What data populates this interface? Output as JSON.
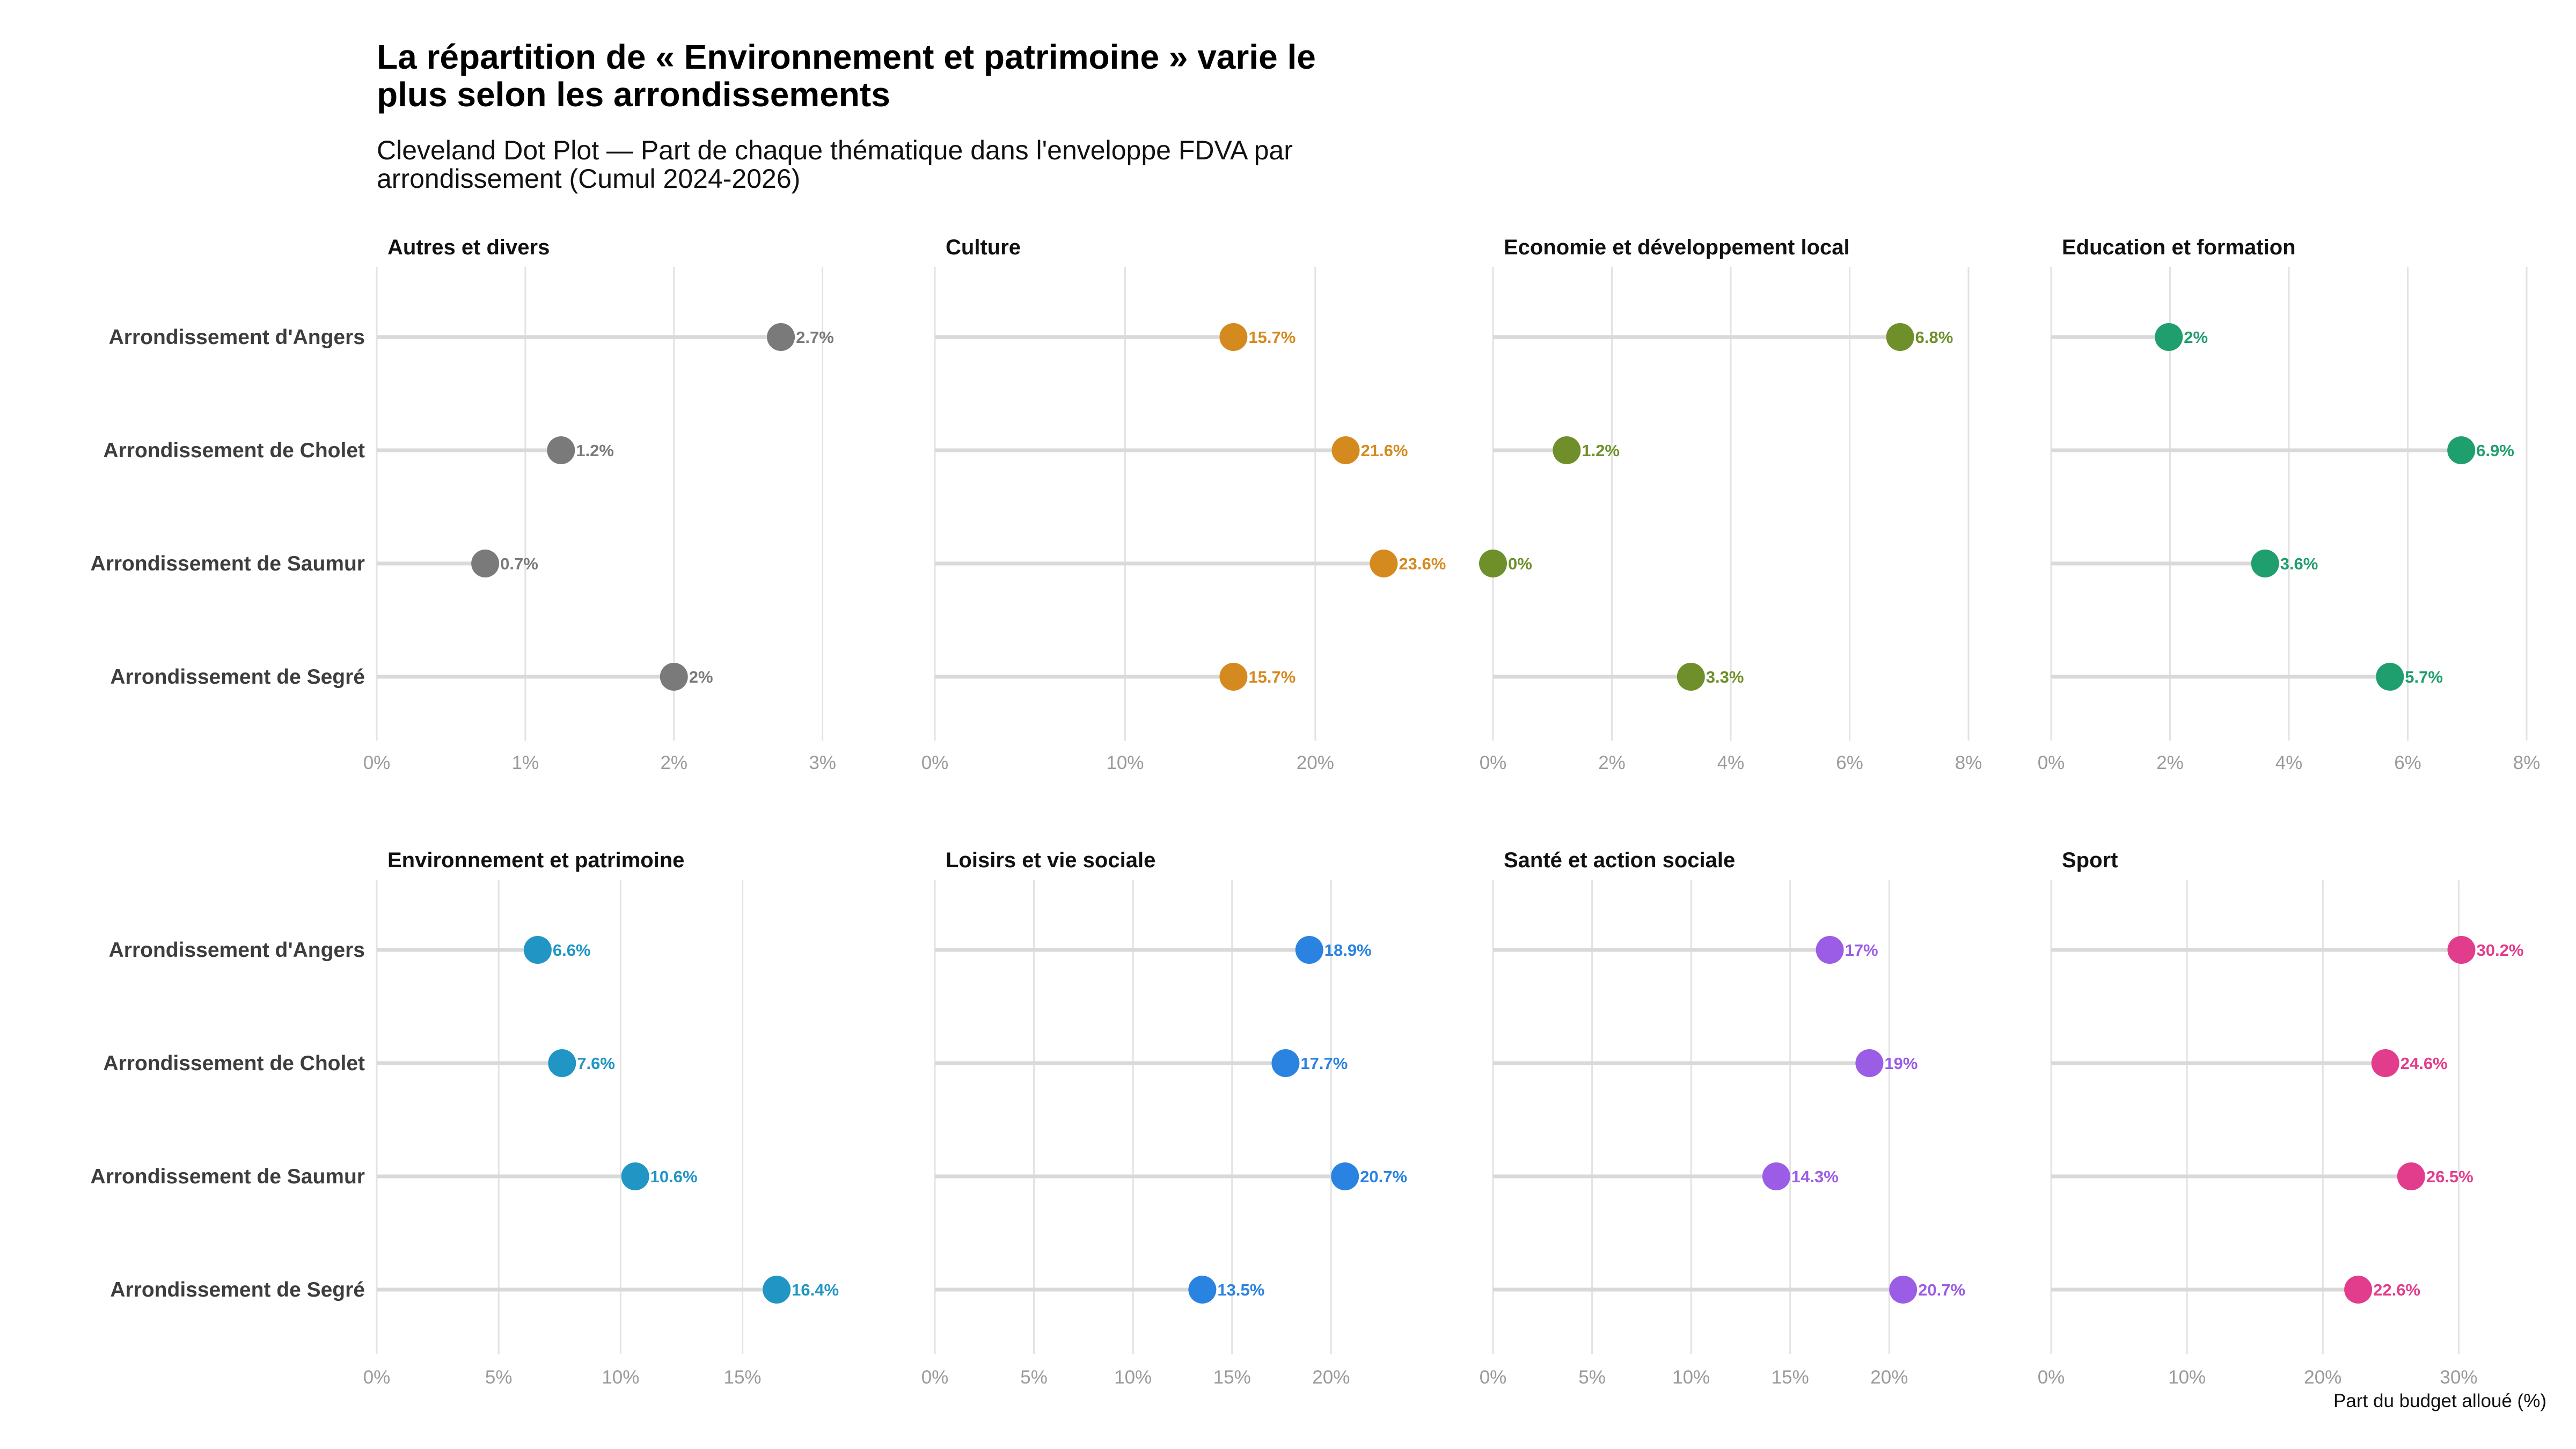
{
  "chart_data": {
    "type": "scatter",
    "subtype": "cleveland-dot-plot",
    "title": "La répartition de « Environnement et patrimoine » varie le plus selon les arrondissements",
    "title_lines": [
      "La répartition de « Environnement et patrimoine » varie le",
      "plus selon les arrondissements"
    ],
    "subtitle": "Cleveland Dot Plot — Part de chaque thématique dans l'enveloppe FDVA par arrondissement (Cumul 2024-2026)",
    "subtitle_lines": [
      "Cleveland Dot Plot — Part de chaque thématique dans l'enveloppe FDVA par",
      "arrondissement (Cumul 2024-2026)"
    ],
    "xlabel": "Part du budget alloué (%)",
    "ylabel": "",
    "categories": [
      "Arrondissement d'Angers",
      "Arrondissement de Cholet",
      "Arrondissement de Saumur",
      "Arrondissement de Segré"
    ],
    "grid": true,
    "legend": "none",
    "facets": [
      {
        "name": "Autres et divers",
        "color": "#7a7a7a",
        "xlim": [
          0,
          3.2
        ],
        "ticks": [
          0,
          1,
          2,
          3
        ],
        "tick_labels": [
          "0%",
          "1%",
          "2%",
          "3%"
        ],
        "values": [
          2.72,
          1.24,
          0.73,
          2.0
        ],
        "labels": [
          "2.7%",
          "1.2%",
          "0.7%",
          "2%"
        ]
      },
      {
        "name": "Culture",
        "color": "#d58a1f",
        "xlim": [
          0,
          25
        ],
        "ticks": [
          0,
          10,
          20
        ],
        "tick_labels": [
          "0%",
          "10%",
          "20%"
        ],
        "values": [
          15.7,
          21.6,
          23.6,
          15.7
        ],
        "labels": [
          "15.7%",
          "21.6%",
          "23.6%",
          "15.7%"
        ]
      },
      {
        "name": "Economie et développement local",
        "color": "#6e8f2a",
        "xlim": [
          0,
          8.0
        ],
        "ticks": [
          0,
          2,
          4,
          6,
          8
        ],
        "tick_labels": [
          "0%",
          "2%",
          "4%",
          "6%",
          "8%"
        ],
        "values": [
          6.85,
          1.24,
          0.0,
          3.33
        ],
        "labels": [
          "6.8%",
          "1.2%",
          "0%",
          "3.3%"
        ]
      },
      {
        "name": "Education et formation",
        "color": "#1f9e6e",
        "xlim": [
          0,
          8.0
        ],
        "ticks": [
          0,
          2,
          4,
          6,
          8
        ],
        "tick_labels": [
          "0%",
          "2%",
          "4%",
          "6%",
          "8%"
        ],
        "values": [
          1.98,
          6.9,
          3.6,
          5.7
        ],
        "labels": [
          "2%",
          "6.9%",
          "3.6%",
          "5.7%"
        ]
      },
      {
        "name": "Environnement et patrimoine",
        "color": "#2196c4",
        "xlim": [
          0,
          19.5
        ],
        "ticks": [
          0,
          5,
          10,
          15
        ],
        "tick_labels": [
          "0%",
          "5%",
          "10%",
          "15%"
        ],
        "values": [
          6.6,
          7.6,
          10.6,
          16.4
        ],
        "labels": [
          "6.6%",
          "7.6%",
          "10.6%",
          "16.4%"
        ]
      },
      {
        "name": "Loisirs et vie sociale",
        "color": "#2a83e0",
        "xlim": [
          0,
          24
        ],
        "ticks": [
          0,
          5,
          10,
          15,
          20
        ],
        "tick_labels": [
          "0%",
          "5%",
          "10%",
          "15%",
          "20%"
        ],
        "values": [
          18.9,
          17.7,
          20.7,
          13.5
        ],
        "labels": [
          "18.9%",
          "17.7%",
          "20.7%",
          "13.5%"
        ]
      },
      {
        "name": "Santé et action sociale",
        "color": "#9b5ce6",
        "xlim": [
          0,
          24
        ],
        "ticks": [
          0,
          5,
          10,
          15,
          20
        ],
        "tick_labels": [
          "0%",
          "5%",
          "10%",
          "15%",
          "20%"
        ],
        "values": [
          17.0,
          19.0,
          14.3,
          20.7
        ],
        "labels": [
          "17%",
          "19%",
          "14.3%",
          "20.7%"
        ]
      },
      {
        "name": "Sport",
        "color": "#e23d8c",
        "xlim": [
          0,
          35
        ],
        "ticks": [
          0,
          10,
          20,
          30
        ],
        "tick_labels": [
          "0%",
          "10%",
          "20%",
          "30%"
        ],
        "values": [
          30.2,
          24.6,
          26.5,
          22.6
        ],
        "labels": [
          "30.2%",
          "24.6%",
          "26.5%",
          "22.6%"
        ]
      }
    ]
  }
}
